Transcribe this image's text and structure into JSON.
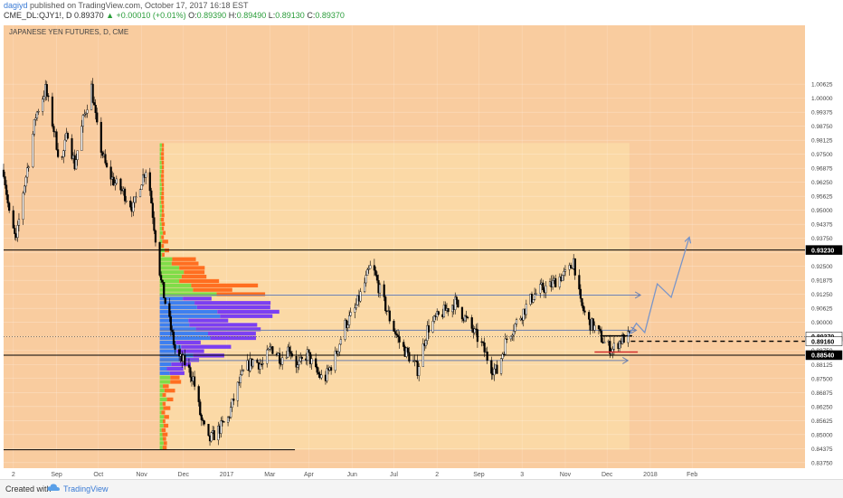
{
  "header": {
    "user": "dagiyd",
    "published": "published on TradingView.com, October 17, 2017 16:18 EST",
    "symbol": "CME_DL:QJY1!, D",
    "last": "0.89370",
    "change": "+0.00010 (+0.01%)",
    "o_label": "O:",
    "o": "0.89390",
    "h_label": "H:",
    "h": "0.89490",
    "l_label": "L:",
    "l": "0.89130",
    "c_label": "C:",
    "c": "0.89370"
  },
  "footer": {
    "created": "Created with",
    "brand": "TradingView",
    "logo_icon": "tradingview-cloud-icon"
  },
  "colors": {
    "pane_bg": "#f9cc9f",
    "range_bg": "#fbd9a6",
    "up": "#ffffff",
    "down": "#000000",
    "vp_green": "#7fdc48",
    "vp_orange": "#ff6e20",
    "vp_blue": "#3e7ff0",
    "vp_purple": "#7b3ff2",
    "projection": "#7a95c8",
    "support_red": "#d43030"
  },
  "chart_data": {
    "type": "candlestick",
    "title": "JAPANESE YEN FUTURES, D, CME",
    "ylim": [
      0.835,
      1.0325
    ],
    "y_ticks": [
      "1.00625",
      "1.00000",
      "0.99375",
      "0.98750",
      "0.98125",
      "0.97500",
      "0.96875",
      "0.96250",
      "0.95625",
      "0.95000",
      "0.94375",
      "0.93750",
      "0.93125",
      "0.92500",
      "0.91875",
      "0.91250",
      "0.90625",
      "0.90000",
      "0.89375",
      "0.88750",
      "0.88125",
      "0.87500",
      "0.86875",
      "0.86250",
      "0.85625",
      "0.85000",
      "0.84375",
      "0.83750"
    ],
    "x_ticks": [
      "2",
      "Sep",
      "Oct",
      "Nov",
      "Dec",
      "2017",
      "Mar",
      "Apr",
      "Jun",
      "Jul",
      "2",
      "Sep",
      "3",
      "Nov",
      "Dec",
      "2018",
      "Feb"
    ],
    "x_range": [
      "2016-07-25",
      "2018-02-20"
    ],
    "price_labels": [
      {
        "value": 0.9323,
        "text": "0.93230",
        "style": "dark"
      },
      {
        "value": 0.8937,
        "text": "0.89370",
        "style": "light"
      },
      {
        "value": 0.8916,
        "text": "0.89160",
        "style": "light"
      },
      {
        "value": 0.8854,
        "text": "0.88540",
        "style": "dark"
      }
    ],
    "horizontal_lines": [
      {
        "value": 0.9323,
        "from": "2016-07-25",
        "to": "2018-02-20",
        "color": "#000000"
      },
      {
        "value": 0.8854,
        "from": "2016-07-25",
        "to": "2018-02-20",
        "color": "#000000"
      },
      {
        "value": 0.8937,
        "from": "2016-07-25",
        "to": "2018-02-20",
        "color": "#555555",
        "dotted": true
      },
      {
        "value": 0.8916,
        "from": "2017-10-18",
        "to": "2018-02-20",
        "color": "#000000",
        "dashed": true
      },
      {
        "value": 0.8432,
        "from": "2016-07-25",
        "to": "2017-02-19",
        "color": "#000000"
      },
      {
        "value": 0.9122,
        "from": "2016-11-14",
        "to": "2017-10-25",
        "color": "#6b7fb0"
      },
      {
        "value": 0.8965,
        "from": "2016-11-14",
        "to": "2017-10-22",
        "color": "#6b7fb0"
      },
      {
        "value": 0.883,
        "from": "2016-11-14",
        "to": "2017-10-16",
        "color": "#6b7fb0"
      }
    ],
    "candle_path": [
      [
        "2016-07-25",
        0.968
      ],
      [
        "2016-07-29",
        0.948
      ],
      [
        "2016-08-03",
        0.936
      ],
      [
        "2016-08-07",
        0.955
      ],
      [
        "2016-08-12",
        0.972
      ],
      [
        "2016-08-17",
        0.992
      ],
      [
        "2016-08-24",
        1.004
      ],
      [
        "2016-08-30",
        0.986
      ],
      [
        "2016-09-04",
        0.97
      ],
      [
        "2016-09-09",
        0.985
      ],
      [
        "2016-09-14",
        0.97
      ],
      [
        "2016-09-20",
        0.99
      ],
      [
        "2016-09-26",
        1.005
      ],
      [
        "2016-10-01",
        0.982
      ],
      [
        "2016-10-07",
        0.968
      ],
      [
        "2016-10-13",
        0.962
      ],
      [
        "2016-10-19",
        0.958
      ],
      [
        "2016-10-26",
        0.951
      ],
      [
        "2016-10-31",
        0.962
      ],
      [
        "2016-11-05",
        0.97
      ],
      [
        "2016-11-10",
        0.943
      ],
      [
        "2016-11-15",
        0.918
      ],
      [
        "2016-11-20",
        0.903
      ],
      [
        "2016-11-26",
        0.885
      ],
      [
        "2016-12-02",
        0.882
      ],
      [
        "2016-12-08",
        0.875
      ],
      [
        "2016-12-14",
        0.856
      ],
      [
        "2016-12-19",
        0.847
      ],
      [
        "2016-12-26",
        0.852
      ],
      [
        "2017-01-02",
        0.857
      ],
      [
        "2017-01-08",
        0.87
      ],
      [
        "2017-01-14",
        0.879
      ],
      [
        "2017-01-20",
        0.883
      ],
      [
        "2017-01-27",
        0.881
      ],
      [
        "2017-02-02",
        0.889
      ],
      [
        "2017-02-09",
        0.884
      ],
      [
        "2017-02-15",
        0.889
      ],
      [
        "2017-02-21",
        0.88
      ],
      [
        "2017-02-28",
        0.886
      ],
      [
        "2017-03-06",
        0.878
      ],
      [
        "2017-03-12",
        0.874
      ],
      [
        "2017-03-20",
        0.885
      ],
      [
        "2017-03-27",
        0.899
      ],
      [
        "2017-04-02",
        0.904
      ],
      [
        "2017-04-08",
        0.914
      ],
      [
        "2017-04-15",
        0.926
      ],
      [
        "2017-04-21",
        0.914
      ],
      [
        "2017-04-29",
        0.9
      ],
      [
        "2017-05-06",
        0.89
      ],
      [
        "2017-05-13",
        0.884
      ],
      [
        "2017-05-18",
        0.879
      ],
      [
        "2017-05-25",
        0.897
      ],
      [
        "2017-06-01",
        0.902
      ],
      [
        "2017-06-08",
        0.906
      ],
      [
        "2017-06-14",
        0.909
      ],
      [
        "2017-06-21",
        0.902
      ],
      [
        "2017-06-26",
        0.897
      ],
      [
        "2017-07-03",
        0.89
      ],
      [
        "2017-07-10",
        0.88
      ],
      [
        "2017-07-14",
        0.878
      ],
      [
        "2017-07-21",
        0.893
      ],
      [
        "2017-07-27",
        0.899
      ],
      [
        "2017-08-03",
        0.906
      ],
      [
        "2017-08-09",
        0.912
      ],
      [
        "2017-08-15",
        0.915
      ],
      [
        "2017-08-21",
        0.916
      ],
      [
        "2017-08-27",
        0.92
      ],
      [
        "2017-09-03",
        0.922
      ],
      [
        "2017-09-07",
        0.928
      ],
      [
        "2017-09-12",
        0.908
      ],
      [
        "2017-09-18",
        0.9
      ],
      [
        "2017-09-23",
        0.897
      ],
      [
        "2017-09-30",
        0.89
      ],
      [
        "2017-10-05",
        0.888
      ],
      [
        "2017-10-09",
        0.891
      ],
      [
        "2017-10-13",
        0.893
      ],
      [
        "2017-10-17",
        0.8937
      ]
    ],
    "shaded_range": {
      "from": "2016-11-14",
      "to": "2017-10-17",
      "y_top": 0.98,
      "y_bottom": 0.8432
    },
    "projection_path": [
      [
        "2017-10-16",
        0.8937
      ],
      [
        "2017-10-22",
        0.8996
      ],
      [
        "2017-10-28",
        0.8955
      ],
      [
        "2017-11-06",
        0.9172
      ],
      [
        "2017-11-16",
        0.9112
      ],
      [
        "2017-11-29",
        0.938
      ]
    ],
    "support_segments": [
      {
        "value": 0.8868,
        "from": "2017-09-22",
        "to": "2017-10-23",
        "color": "#d43030"
      },
      {
        "value": 0.894,
        "from": "2017-09-26",
        "to": "2017-10-19",
        "color": "#000000"
      }
    ],
    "volume_profile": {
      "left_date": "2016-11-14",
      "max_length_days": 100,
      "top": 0.98,
      "bottom": 0.8432,
      "rows": 70,
      "poc": 0.904,
      "value_area": [
        0.876,
        0.911
      ]
    }
  }
}
